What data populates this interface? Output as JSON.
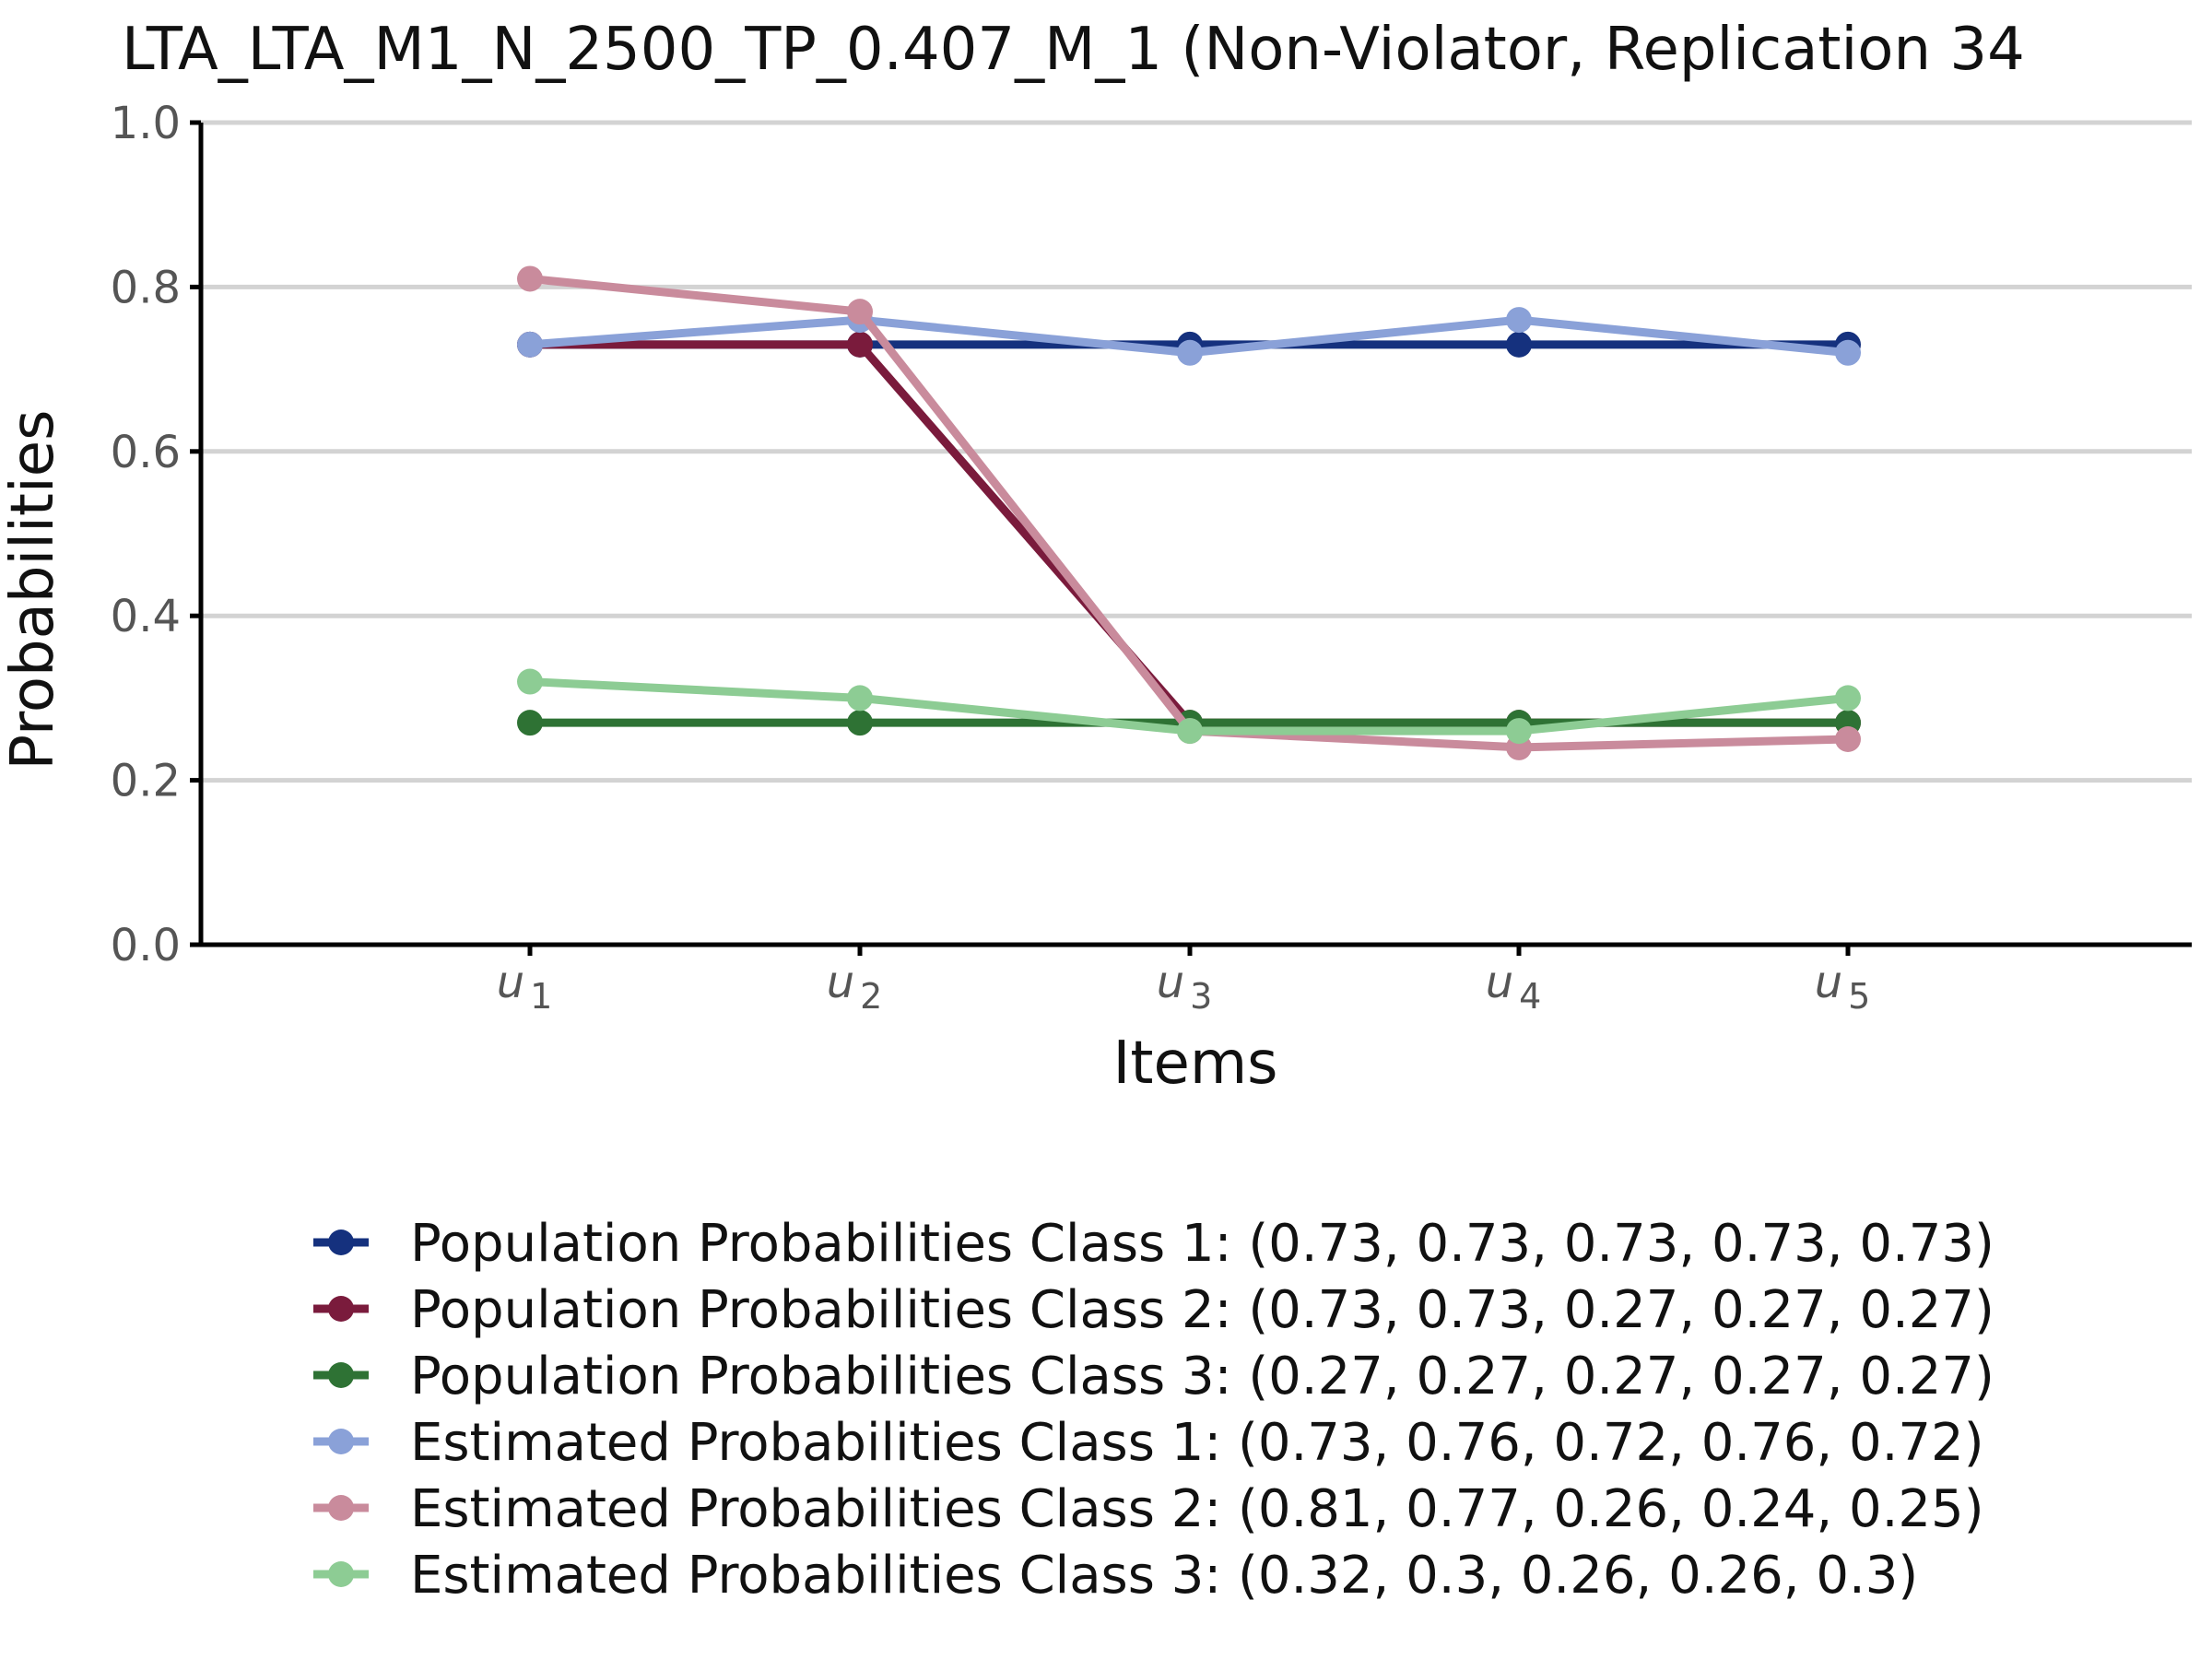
{
  "chart_data": {
    "type": "line",
    "title": "LTA_LTA_M1_N_2500_TP_0.407_M_1 (Non-Violator, Replication 34",
    "xlabel": "Items",
    "ylabel": "Probabilities",
    "categories": [
      {
        "base": "u",
        "sub": "1"
      },
      {
        "base": "u",
        "sub": "2"
      },
      {
        "base": "u",
        "sub": "3"
      },
      {
        "base": "u",
        "sub": "4"
      },
      {
        "base": "u",
        "sub": "5"
      }
    ],
    "ylim": [
      0,
      1
    ],
    "yticks": [
      "0.0",
      "0.2",
      "0.4",
      "0.6",
      "0.8",
      "1.0"
    ],
    "grid": "horizontal",
    "legend_position": "bottom",
    "series": [
      {
        "name": "Population Probabilities Class 1: (0.73, 0.73, 0.73, 0.73, 0.73)",
        "values": [
          0.73,
          0.73,
          0.73,
          0.73,
          0.73
        ],
        "color": "#15317e"
      },
      {
        "name": "Population Probabilities Class 2: (0.73, 0.73, 0.27, 0.27, 0.27)",
        "values": [
          0.73,
          0.73,
          0.27,
          0.27,
          0.27
        ],
        "color": "#7a1b3c"
      },
      {
        "name": "Population Probabilities Class 3: (0.27, 0.27, 0.27, 0.27, 0.27)",
        "values": [
          0.27,
          0.27,
          0.27,
          0.27,
          0.27
        ],
        "color": "#2e7234"
      },
      {
        "name": "Estimated Probabilities Class 1: (0.73, 0.76, 0.72, 0.76, 0.72)",
        "values": [
          0.73,
          0.76,
          0.72,
          0.76,
          0.72
        ],
        "color": "#8aa1d8"
      },
      {
        "name": "Estimated Probabilities Class 2: (0.81, 0.77, 0.26, 0.24, 0.25)",
        "values": [
          0.81,
          0.77,
          0.26,
          0.24,
          0.25
        ],
        "color": "#c98b9c"
      },
      {
        "name": "Estimated Probabilities Class 3: (0.32, 0.3, 0.26, 0.26, 0.3)",
        "values": [
          0.32,
          0.3,
          0.26,
          0.26,
          0.3
        ],
        "color": "#8dcc94"
      }
    ]
  }
}
